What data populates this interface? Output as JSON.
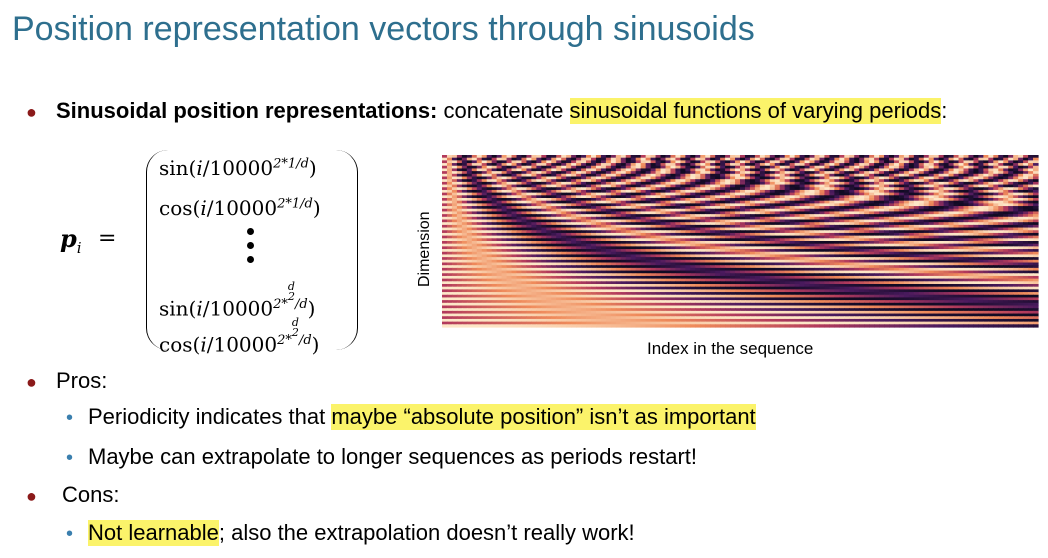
{
  "title": "Position representation vectors through sinusoids",
  "bullet1": {
    "bold": "Sinusoidal position representations:",
    "plain": " concatenate ",
    "highlight": "sinusoidal functions of varying periods",
    "end": ":"
  },
  "formula": {
    "lhs": "p",
    "lhs_sub": "i",
    "eq": "=",
    "rows": [
      {
        "fn": "sin",
        "arg": "i",
        "base": "/10000",
        "exp": "2*1/d",
        "close": ")"
      },
      {
        "fn": "cos",
        "arg": "i",
        "base": "/10000",
        "exp": "2*1/d",
        "close": ")"
      },
      {
        "fn": "sin",
        "arg": "i",
        "base": "/10000",
        "exp_pre": "2*",
        "frac_num": "d",
        "frac_den": "2",
        "exp_post": "/d",
        "close": ")"
      },
      {
        "fn": "cos",
        "arg": "i",
        "base": "/10000",
        "exp_pre": "2*",
        "frac_num": "d",
        "frac_den": "2",
        "exp_post": "/d",
        "close": ")"
      }
    ]
  },
  "figure": {
    "ylabel": "Dimension",
    "xlabel": "Index in the sequence",
    "colormap": [
      "#100a22",
      "#4a1a5e",
      "#b23a5c",
      "#ef8a5a",
      "#fde7c8"
    ]
  },
  "pros": {
    "label": "Pros:",
    "items": [
      {
        "plain": "Periodicity indicates that ",
        "highlight": "maybe “absolute position” isn’t as important"
      },
      {
        "plain": "Maybe can extrapolate to longer sequences as periods restart!"
      }
    ]
  },
  "cons": {
    "label": "Cons:",
    "items": [
      {
        "highlight": "Not learnable",
        "plain": "; also the extrapolation doesn’t really work!"
      }
    ]
  },
  "colors": {
    "title": "#2e6f8e",
    "highlight": "#fbf36a",
    "bullet_main": "#8b1a1a",
    "bullet_sub": "#3a7fae"
  }
}
